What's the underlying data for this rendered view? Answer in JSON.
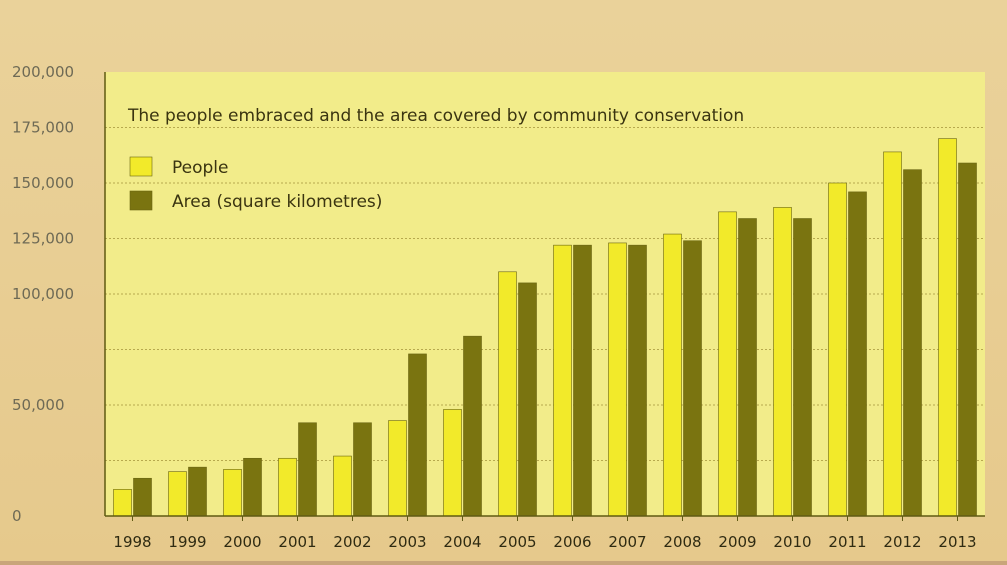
{
  "chart_data": {
    "type": "bar",
    "title": "The people embraced and the area covered by community conservation",
    "xlabel": "",
    "ylabel": "",
    "categories": [
      "1998",
      "1999",
      "2000",
      "2001",
      "2002",
      "2003",
      "2004",
      "2005",
      "2006",
      "2007",
      "2008",
      "2009",
      "2010",
      "2011",
      "2012",
      "2013"
    ],
    "series": [
      {
        "name": "People",
        "color": "#f2ea2a",
        "values": [
          12000,
          20000,
          21000,
          26000,
          27000,
          43000,
          48000,
          110000,
          122000,
          123000,
          127000,
          137000,
          139000,
          150000,
          164000,
          170000
        ]
      },
      {
        "name": "Area (square kilometres)",
        "color": "#7a7410",
        "values": [
          17000,
          22000,
          26000,
          42000,
          42000,
          73000,
          81000,
          105000,
          122000,
          122000,
          124000,
          134000,
          134000,
          146000,
          156000,
          159000
        ]
      }
    ],
    "y_tick_labels": [
      "0",
      "50,000",
      "100,000",
      "125,000",
      "150,000",
      "175,000",
      "200,000"
    ],
    "ylim": [
      0,
      200000
    ],
    "grid": true,
    "legend_position": "top-left",
    "colors": {
      "plot_background": "#f2ec8a",
      "axis": "#5f5a12",
      "grid": "#b7a94e"
    }
  }
}
